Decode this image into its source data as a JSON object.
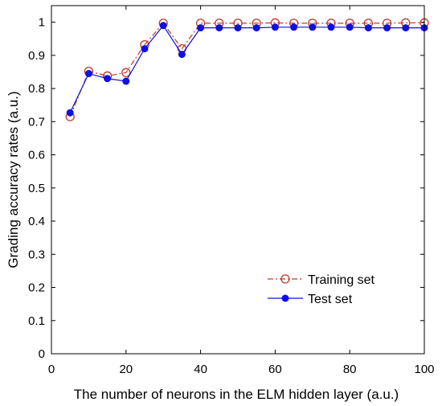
{
  "chart_data": {
    "type": "line",
    "xlabel": "The number  of neurons in the ELM hidden layer (a.u.)",
    "ylabel": "Grading accuracy rates (a.u.)",
    "xlim": [
      0,
      100
    ],
    "ylim": [
      0,
      1.05
    ],
    "xticks": [
      0,
      20,
      40,
      60,
      80,
      100
    ],
    "yticks": [
      0,
      0.1,
      0.2,
      0.3,
      0.4,
      0.5,
      0.6,
      0.7,
      0.8,
      0.9,
      1
    ],
    "xtick_labels": [
      "0",
      "20",
      "40",
      "60",
      "80",
      "100"
    ],
    "ytick_labels": [
      "0",
      "0.1",
      "0.2",
      "0.3",
      "0.4",
      "0.5",
      "0.6",
      "0.7",
      "0.8",
      "0.9",
      "1"
    ],
    "grid": false,
    "legend_position": "bottom-right",
    "x": [
      5,
      10,
      15,
      20,
      25,
      30,
      35,
      40,
      45,
      50,
      55,
      60,
      65,
      70,
      75,
      80,
      85,
      90,
      95,
      100
    ],
    "series": [
      {
        "name": "Training set",
        "color": "#c0392b",
        "marker": "open-circle",
        "line_style": "dash-dot",
        "values": [
          0.715,
          0.852,
          0.838,
          0.848,
          0.932,
          0.997,
          0.92,
          0.997,
          0.997,
          0.997,
          0.997,
          0.998,
          0.997,
          0.997,
          0.997,
          0.997,
          0.997,
          0.997,
          0.998,
          0.998
        ]
      },
      {
        "name": "Test set",
        "color": "#1010e0",
        "marker": "filled-circle",
        "line_style": "solid",
        "values": [
          0.727,
          0.845,
          0.83,
          0.822,
          0.92,
          0.99,
          0.903,
          0.983,
          0.983,
          0.983,
          0.983,
          0.985,
          0.985,
          0.985,
          0.985,
          0.985,
          0.983,
          0.983,
          0.983,
          0.983
        ]
      }
    ]
  }
}
